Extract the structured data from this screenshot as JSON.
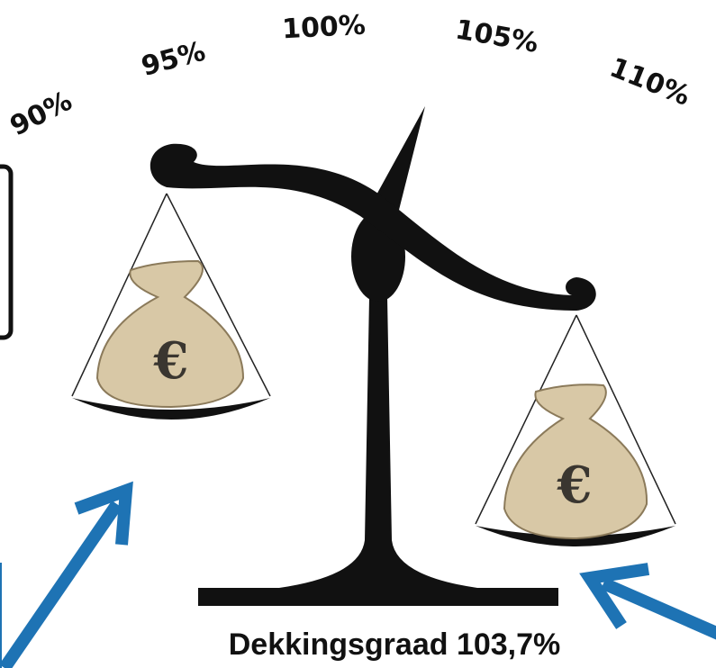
{
  "gauge_labels": [
    "90%",
    "95%",
    "100%",
    "105%",
    "110%"
  ],
  "bags": [
    {
      "symbol": "€"
    },
    {
      "symbol": "€"
    }
  ],
  "caption": "Dekkingsgraad 103,7%"
}
